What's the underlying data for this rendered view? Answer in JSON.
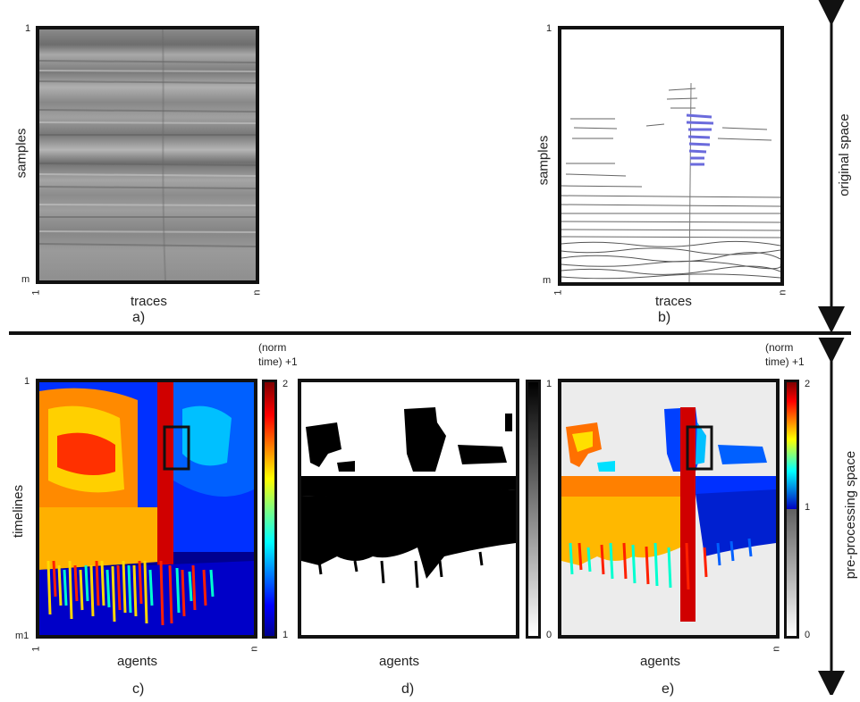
{
  "panel_a": {
    "ylabel": "samples",
    "xlabel": "traces",
    "tag": "a)",
    "y_top": "1",
    "y_bottom": "m",
    "x_left": "1",
    "x_right": "n"
  },
  "panel_b": {
    "ylabel": "samples",
    "xlabel": "traces",
    "tag": "b)",
    "y_top": "1",
    "y_bottom": "m",
    "x_left": "1",
    "x_right": "n"
  },
  "panel_c": {
    "ylabel": "timelines",
    "xlabel": "agents",
    "tag": "c)",
    "y_top": "1",
    "y_bottom": "m1",
    "x_left": "1",
    "x_right": "n",
    "cbar_title_1": "(norm",
    "cbar_title_2": "time) +1",
    "cbar_max": "2",
    "cbar_min": "1"
  },
  "panel_d": {
    "xlabel": "agents",
    "tag": "d)",
    "cbar_max": "1",
    "cbar_min": "0"
  },
  "panel_e": {
    "xlabel": "agents",
    "tag": "e)",
    "x_right": "n",
    "cbar_title_1": "(norm",
    "cbar_title_2": "time) +1",
    "cbar_max": "2",
    "cbar_mid": "1",
    "cbar_min": "0"
  },
  "side": {
    "original": "original space",
    "preprocessing": "pre-processing space"
  },
  "colors": {
    "jet": [
      "#00008f",
      "#0000ff",
      "#0080ff",
      "#00ffff",
      "#80ff80",
      "#ffff00",
      "#ff8000",
      "#ff0000",
      "#800000"
    ],
    "highlight": "#6b6bdc",
    "background_e": "#ececec"
  }
}
